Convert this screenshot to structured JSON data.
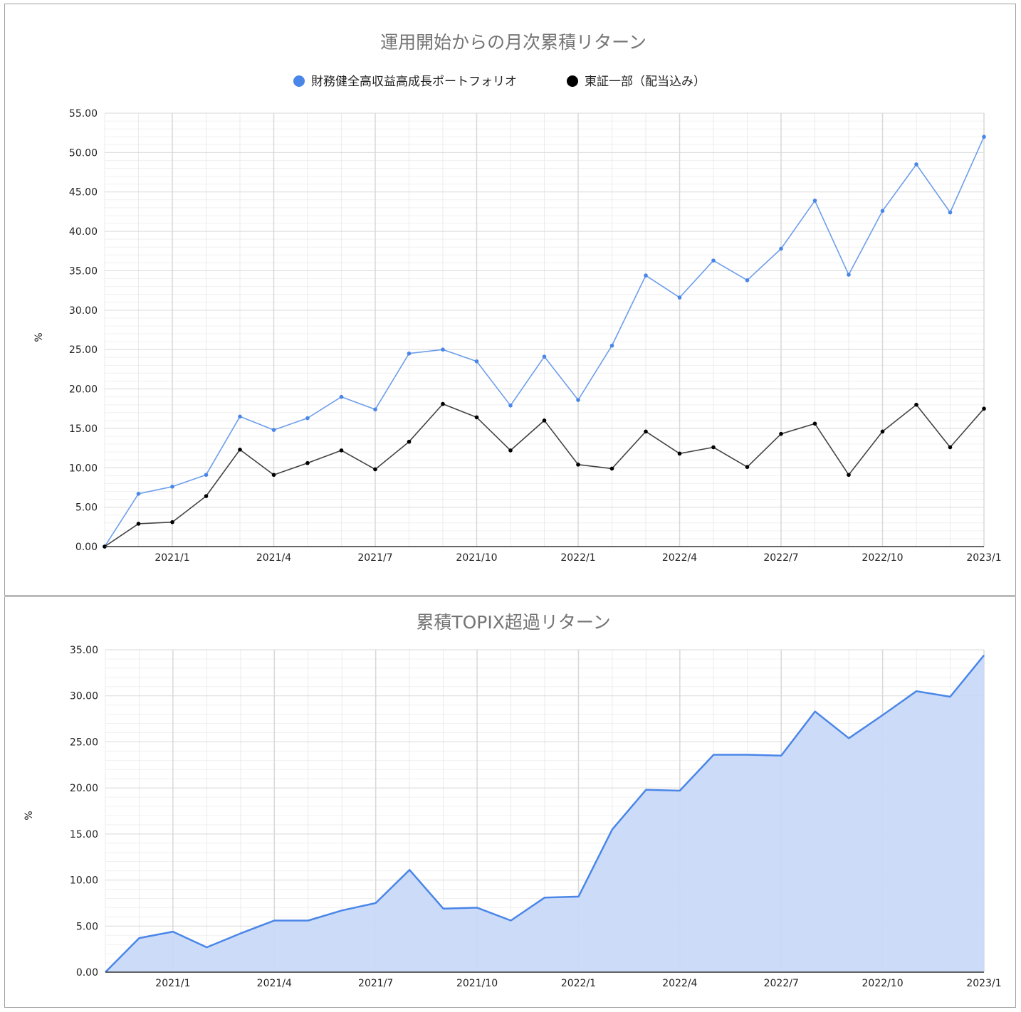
{
  "chart_data": [
    {
      "type": "line",
      "title": "運用開始からの月次累積リターン",
      "ylabel": "%",
      "xlabel": "",
      "ylim": [
        0,
        55
      ],
      "y_ticks": [
        "0.00",
        "5.00",
        "10.00",
        "15.00",
        "20.00",
        "25.00",
        "30.00",
        "35.00",
        "40.00",
        "45.00",
        "50.00",
        "55.00"
      ],
      "x": [
        "2020/11",
        "2020/12",
        "2021/1",
        "2021/2",
        "2021/3",
        "2021/4",
        "2021/5",
        "2021/6",
        "2021/7",
        "2021/8",
        "2021/9",
        "2021/10",
        "2021/11",
        "2021/12",
        "2022/1",
        "2022/2",
        "2022/3",
        "2022/4",
        "2022/5",
        "2022/6",
        "2022/7",
        "2022/8",
        "2022/9",
        "2022/10",
        "2022/11",
        "2022/12",
        "2023/1"
      ],
      "x_tick_labels": [
        {
          "index": 2,
          "label": "2021/1"
        },
        {
          "index": 5,
          "label": "2021/4"
        },
        {
          "index": 8,
          "label": "2021/7"
        },
        {
          "index": 11,
          "label": "2021/10"
        },
        {
          "index": 14,
          "label": "2022/1"
        },
        {
          "index": 17,
          "label": "2022/4"
        },
        {
          "index": 20,
          "label": "2022/7"
        },
        {
          "index": 23,
          "label": "2022/10"
        },
        {
          "index": 26,
          "label": "2023/1"
        }
      ],
      "legend_position": "top",
      "grid": true,
      "series": [
        {
          "name": "財務健全高収益高成長ポートフォリオ",
          "color": "#6d9eeb",
          "marker_color": "#4a86e8",
          "values": [
            0.0,
            6.7,
            7.6,
            9.1,
            16.5,
            14.8,
            16.3,
            19.0,
            17.4,
            24.5,
            25.0,
            23.5,
            17.9,
            24.1,
            18.6,
            25.5,
            34.4,
            31.6,
            36.3,
            33.8,
            37.8,
            43.9,
            34.5,
            42.6,
            48.5,
            42.4,
            52.0
          ]
        },
        {
          "name": "東証一部（配当込み）",
          "color": "#434343",
          "marker_color": "#000000",
          "values": [
            0.0,
            2.9,
            3.1,
            6.4,
            12.3,
            9.1,
            10.6,
            12.2,
            9.8,
            13.3,
            18.1,
            16.4,
            12.2,
            16.0,
            10.4,
            9.9,
            14.6,
            11.8,
            12.6,
            10.1,
            14.3,
            15.6,
            9.1,
            14.6,
            18.0,
            12.6,
            17.5
          ]
        }
      ]
    },
    {
      "type": "area",
      "title": "累積TOPIX超過リターン",
      "ylabel": "%",
      "xlabel": "",
      "ylim": [
        0,
        35
      ],
      "y_ticks": [
        "0.00",
        "5.00",
        "10.00",
        "15.00",
        "20.00",
        "25.00",
        "30.00",
        "35.00"
      ],
      "x": [
        "2020/11",
        "2020/12",
        "2021/1",
        "2021/2",
        "2021/3",
        "2021/4",
        "2021/5",
        "2021/6",
        "2021/7",
        "2021/8",
        "2021/9",
        "2021/10",
        "2021/11",
        "2021/12",
        "2022/1",
        "2022/2",
        "2022/3",
        "2022/4",
        "2022/5",
        "2022/6",
        "2022/7",
        "2022/8",
        "2022/9",
        "2022/10",
        "2022/11",
        "2022/12",
        "2023/1"
      ],
      "x_tick_labels": [
        {
          "index": 2,
          "label": "2021/1"
        },
        {
          "index": 5,
          "label": "2021/4"
        },
        {
          "index": 8,
          "label": "2021/7"
        },
        {
          "index": 11,
          "label": "2021/10"
        },
        {
          "index": 14,
          "label": "2022/1"
        },
        {
          "index": 17,
          "label": "2022/4"
        },
        {
          "index": 20,
          "label": "2022/7"
        },
        {
          "index": 23,
          "label": "2022/10"
        },
        {
          "index": 26,
          "label": "2023/1"
        }
      ],
      "grid": true,
      "series": [
        {
          "color": "#4a86e8",
          "fill": "#c9daf8",
          "values": [
            0.0,
            3.7,
            4.4,
            2.7,
            4.2,
            5.6,
            5.6,
            6.7,
            7.5,
            11.1,
            6.9,
            7.0,
            5.6,
            8.1,
            8.2,
            15.5,
            19.8,
            19.7,
            23.6,
            23.6,
            23.5,
            28.3,
            25.4,
            27.9,
            30.5,
            29.9,
            34.4
          ]
        }
      ]
    }
  ]
}
